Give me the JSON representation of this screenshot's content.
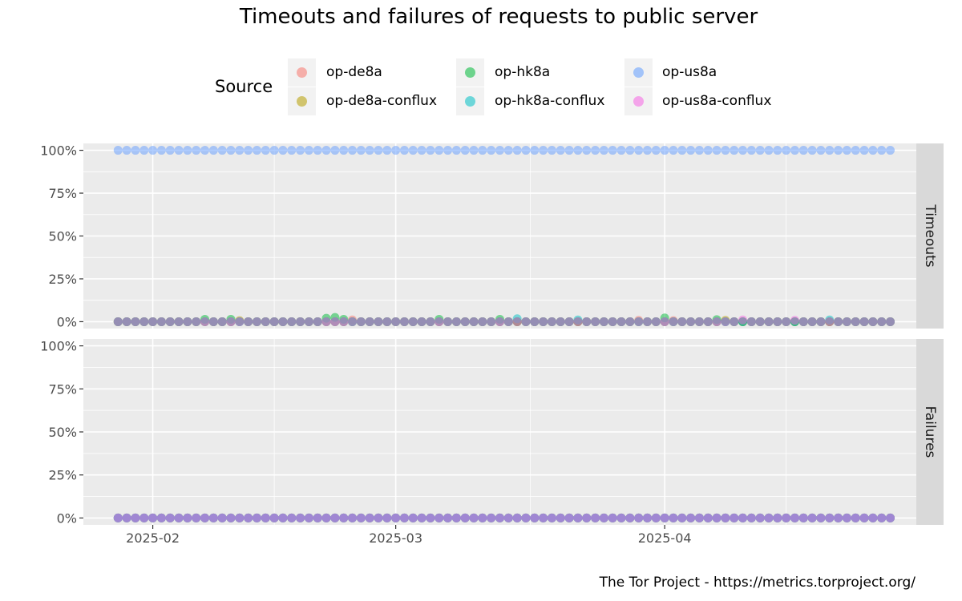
{
  "chart_data": {
    "type": "scatter",
    "title": "Timeouts and failures of requests to public server",
    "caption": "The Tor Project - https://metrics.torproject.org/",
    "legend": {
      "title": "Source",
      "placement": "top",
      "entries": [
        {
          "name": "op-de8a",
          "color": "#F8766D"
        },
        {
          "name": "op-de8a-conflux",
          "color": "#B79F00"
        },
        {
          "name": "op-hk8a",
          "color": "#00BA38"
        },
        {
          "name": "op-hk8a-conflux",
          "color": "#00BFC4"
        },
        {
          "name": "op-us8a",
          "color": "#619CFF"
        },
        {
          "name": "op-us8a-conflux",
          "color": "#F564E3"
        }
      ]
    },
    "x_axis": {
      "type": "date",
      "range": [
        "2025-01-24",
        "2025-04-30"
      ],
      "ticks": [
        "2025-02",
        "2025-03",
        "2025-04"
      ],
      "tick_dates": [
        "2025-02-01",
        "2025-03-01",
        "2025-04-01"
      ],
      "first_point": "2025-01-28",
      "last_point": "2025-04-27"
    },
    "y_axis": {
      "ticks": [
        "0%",
        "25%",
        "50%",
        "75%",
        "100%"
      ],
      "range": [
        -0.04,
        1.04
      ]
    },
    "grid": true,
    "facets": [
      {
        "label": "Timeouts",
        "series": [
          {
            "name": "op-us8a",
            "constant": 1.0
          },
          {
            "name": "op-de8a",
            "baseline": 0.0,
            "bumps": [
              [
                "2025-02-24",
                0.01
              ],
              [
                "2025-03-29",
                0.008
              ],
              [
                "2025-04-02",
                0.006
              ]
            ]
          },
          {
            "name": "op-de8a-conflux",
            "baseline": 0.0,
            "bumps": [
              [
                "2025-02-11",
                0.006
              ],
              [
                "2025-04-08",
                0.008
              ]
            ]
          },
          {
            "name": "op-hk8a",
            "baseline": 0.0,
            "bumps": [
              [
                "2025-02-07",
                0.014
              ],
              [
                "2025-02-10",
                0.014
              ],
              [
                "2025-02-21",
                0.02
              ],
              [
                "2025-02-22",
                0.025
              ],
              [
                "2025-02-23",
                0.014
              ],
              [
                "2025-03-06",
                0.014
              ],
              [
                "2025-03-13",
                0.014
              ],
              [
                "2025-04-01",
                0.022
              ],
              [
                "2025-04-07",
                0.012
              ]
            ]
          },
          {
            "name": "op-hk8a-conflux",
            "baseline": 0.0,
            "bumps": [
              [
                "2025-03-15",
                0.017
              ],
              [
                "2025-03-22",
                0.01
              ],
              [
                "2025-04-20",
                0.01
              ]
            ]
          },
          {
            "name": "op-us8a-conflux",
            "baseline": 0.0,
            "bumps": [
              [
                "2025-04-10",
                0.01
              ],
              [
                "2025-04-16",
                0.008
              ]
            ]
          }
        ]
      },
      {
        "label": "Failures",
        "series": [
          {
            "name": "op-de8a",
            "constant": 0.0
          },
          {
            "name": "op-de8a-conflux",
            "constant": 0.0
          },
          {
            "name": "op-hk8a",
            "constant": 0.0
          },
          {
            "name": "op-hk8a-conflux",
            "constant": 0.0
          },
          {
            "name": "op-us8a",
            "constant": 0.0
          },
          {
            "name": "op-us8a-conflux",
            "constant": 0.0
          }
        ]
      }
    ]
  }
}
